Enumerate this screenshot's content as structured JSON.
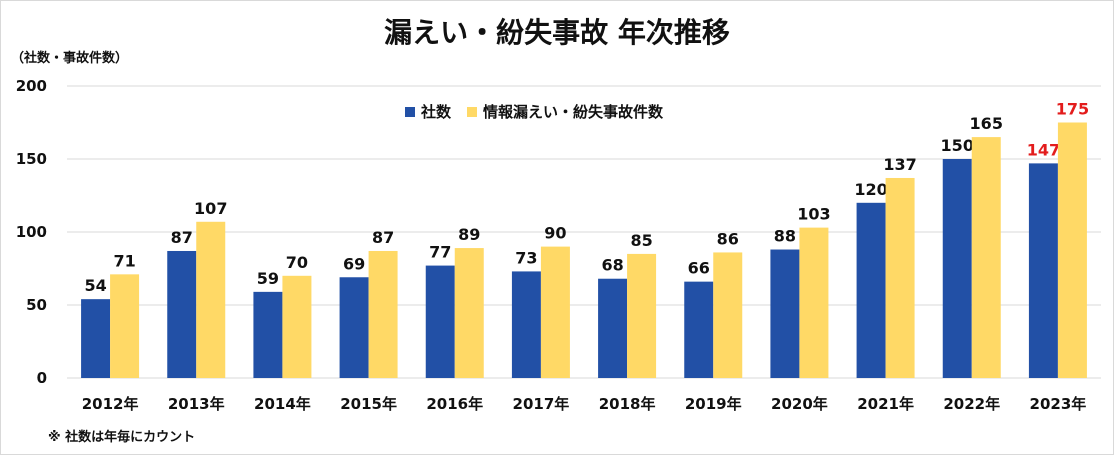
{
  "chart_data": {
    "type": "bar",
    "title": "漏えい・紛失事故 年次推移",
    "ylabel": "（社数・事故件数）",
    "ylim": [
      0,
      200
    ],
    "yticks": [
      0,
      50,
      100,
      150,
      200
    ],
    "grid": true,
    "legend_position": "top-center",
    "categories": [
      "2012年",
      "2013年",
      "2014年",
      "2015年",
      "2016年",
      "2017年",
      "2018年",
      "2019年",
      "2020年",
      "2021年",
      "2022年",
      "2023年"
    ],
    "series": [
      {
        "name": "社数",
        "color": "#2250a6",
        "values": [
          54,
          87,
          59,
          69,
          77,
          73,
          68,
          66,
          88,
          120,
          150,
          147
        ]
      },
      {
        "name": "情報漏えい・紛失事故件数",
        "color": "#ffd966",
        "values": [
          71,
          107,
          70,
          87,
          89,
          90,
          85,
          86,
          103,
          137,
          165,
          175
        ]
      }
    ],
    "highlight_label_color": "#e31c1c",
    "highlight_category": "2023年",
    "footnote": "※ 社数は年毎にカウント"
  }
}
